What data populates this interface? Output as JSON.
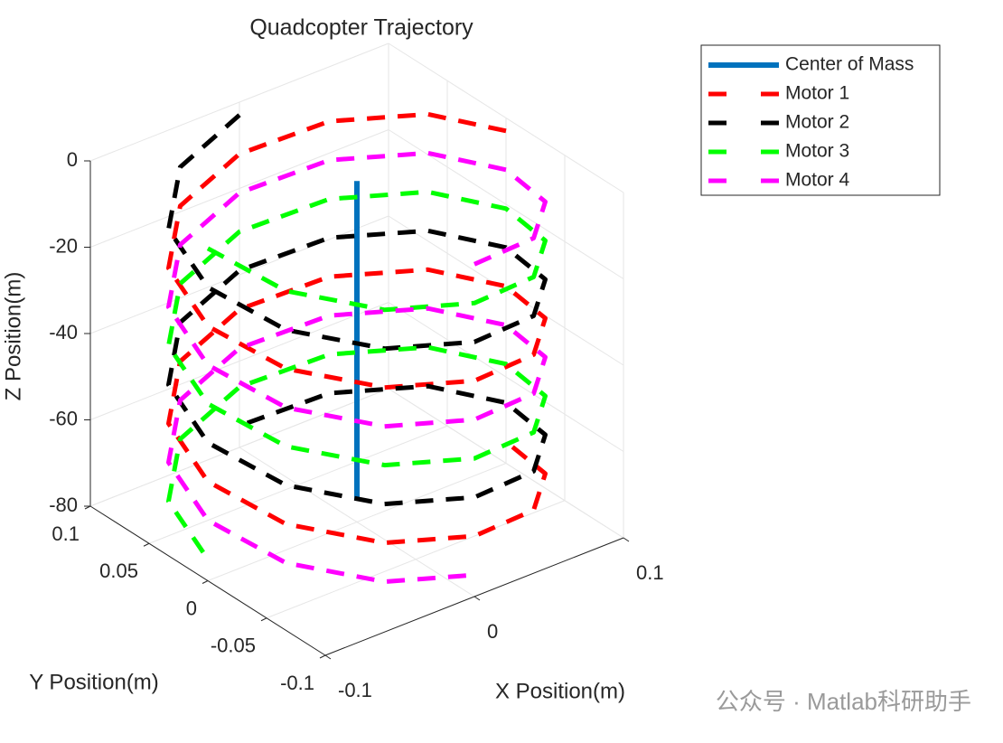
{
  "chart_data": {
    "type": "line3d",
    "title": "Quadcopter Trajectory",
    "xlabel": "X Position(m)",
    "ylabel": "Y Position(m)",
    "zlabel": "Z Position(m)",
    "xlim": [
      -0.1,
      0.1
    ],
    "ylim": [
      -0.1,
      0.1
    ],
    "zlim": [
      -80,
      0
    ],
    "xticks": [
      -0.1,
      0,
      0.1
    ],
    "yticks": [
      -0.1,
      -0.05,
      0,
      0.05,
      0.1
    ],
    "zticks": [
      -80,
      -60,
      -40,
      -20,
      0
    ],
    "grid": true,
    "legend": "northeast",
    "watermark": "公众号 · Matlab科研助手",
    "series": [
      {
        "name": "Center of Mass",
        "color": "#0072BD",
        "style": "solid",
        "x": [
          0,
          0
        ],
        "y": [
          0,
          0
        ],
        "z": [
          -1,
          -75
        ]
      },
      {
        "name": "Motor 1",
        "color": "#FF0000",
        "style": "dashed",
        "x": [
          0.1,
          0.087,
          0.05,
          0,
          -0.05,
          -0.087,
          -0.1,
          -0.087,
          -0.05,
          0,
          0.05,
          0.087,
          0.1,
          0.087,
          0.05,
          0,
          -0.05,
          -0.087,
          -0.1,
          -0.087,
          -0.05,
          0,
          0.05,
          0.087,
          0.1
        ],
        "y": [
          0,
          0.05,
          0.087,
          0.1,
          0.087,
          0.05,
          0,
          -0.05,
          -0.087,
          -0.1,
          -0.087,
          -0.05,
          0,
          0.05,
          0.087,
          0.1,
          0.087,
          0.05,
          0,
          -0.05,
          -0.087,
          -0.1,
          -0.087,
          -0.05,
          0
        ],
        "z": [
          -3,
          -6,
          -9,
          -12,
          -15,
          -18,
          -21,
          -24,
          -27,
          -30,
          -33,
          -36,
          -39,
          -42,
          -45,
          -48,
          -51,
          -54,
          -57,
          -60,
          -63,
          -66,
          -69,
          -72,
          -75
        ]
      },
      {
        "name": "Motor 2",
        "color": "#000000",
        "style": "dashed",
        "x": [
          0,
          -0.05,
          -0.087,
          -0.1,
          -0.087,
          -0.05,
          0,
          0.05,
          0.087,
          0.1,
          0.087,
          0.05,
          0,
          -0.05,
          -0.087,
          -0.1,
          -0.087,
          -0.05,
          0,
          0.05,
          0.087,
          0.1,
          0.087,
          0.05,
          0
        ],
        "y": [
          0.1,
          0.087,
          0.05,
          0,
          -0.05,
          -0.087,
          -0.1,
          -0.087,
          -0.05,
          0,
          0.05,
          0.087,
          0.1,
          0.087,
          0.05,
          0,
          -0.05,
          -0.087,
          -0.1,
          -0.087,
          -0.05,
          0,
          0.05,
          0.087,
          0.1
        ],
        "z": [
          -3,
          -6,
          -9,
          -12,
          -15,
          -18,
          -21,
          -24,
          -27,
          -30,
          -33,
          -36,
          -39,
          -42,
          -45,
          -48,
          -51,
          -54,
          -57,
          -60,
          -63,
          -66,
          -69,
          -72,
          -75
        ]
      },
      {
        "name": "Motor 3",
        "color": "#00FF00",
        "style": "dashed",
        "x": [
          -0.1,
          -0.087,
          -0.05,
          0,
          0.05,
          0.087,
          0.1,
          0.087,
          0.05,
          0,
          -0.05,
          -0.087,
          -0.1,
          -0.087,
          -0.05,
          0,
          0.05,
          0.087,
          0.1,
          0.087,
          0.05,
          0,
          -0.05,
          -0.087,
          -0.1
        ],
        "y": [
          0,
          -0.05,
          -0.087,
          -0.1,
          -0.087,
          -0.05,
          0,
          0.05,
          0.087,
          0.1,
          0.087,
          0.05,
          0,
          -0.05,
          -0.087,
          -0.1,
          -0.087,
          -0.05,
          0,
          0.05,
          0.087,
          0.1,
          0.087,
          0.05,
          0
        ],
        "z": [
          -3,
          -6,
          -9,
          -12,
          -15,
          -18,
          -21,
          -24,
          -27,
          -30,
          -33,
          -36,
          -39,
          -42,
          -45,
          -48,
          -51,
          -54,
          -57,
          -60,
          -63,
          -66,
          -69,
          -72,
          -75
        ]
      },
      {
        "name": "Motor 4",
        "color": "#FF00FF",
        "style": "dashed",
        "x": [
          0,
          0.05,
          0.087,
          0.1,
          0.087,
          0.05,
          0,
          -0.05,
          -0.087,
          -0.1,
          -0.087,
          -0.05,
          0,
          0.05,
          0.087,
          0.1,
          0.087,
          0.05,
          0,
          -0.05,
          -0.087,
          -0.1,
          -0.087,
          -0.05,
          0
        ],
        "y": [
          -0.1,
          -0.087,
          -0.05,
          0,
          0.05,
          0.087,
          0.1,
          0.087,
          0.05,
          0,
          -0.05,
          -0.087,
          -0.1,
          -0.087,
          -0.05,
          0,
          0.05,
          0.087,
          0.1,
          0.087,
          0.05,
          0,
          -0.05,
          -0.087,
          -0.1
        ],
        "z": [
          -3,
          -6,
          -9,
          -12,
          -15,
          -18,
          -21,
          -24,
          -27,
          -30,
          -33,
          -36,
          -39,
          -42,
          -45,
          -48,
          -51,
          -54,
          -57,
          -60,
          -63,
          -66,
          -69,
          -72,
          -75
        ]
      }
    ]
  }
}
